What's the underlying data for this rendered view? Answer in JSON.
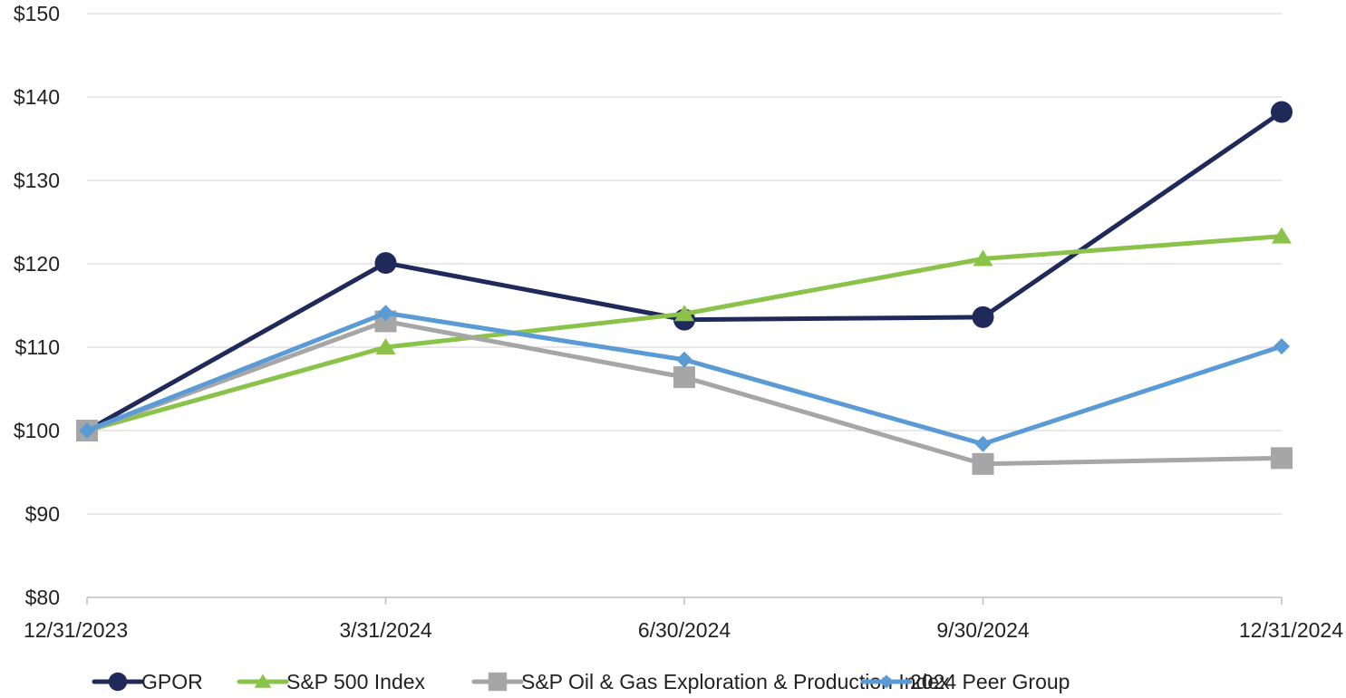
{
  "chart_data": {
    "type": "line",
    "categories": [
      "12/31/2023",
      "3/31/2024",
      "6/30/2024",
      "9/30/2024",
      "12/31/2024"
    ],
    "y_tick_values": [
      80,
      90,
      100,
      110,
      120,
      130,
      140,
      150
    ],
    "y_tick_labels": [
      "$80",
      "$90",
      "$100",
      "$110",
      "$120",
      "$130",
      "$140",
      "$150"
    ],
    "ylim": [
      80,
      150
    ],
    "grid": "horizontal",
    "legend_position": "bottom",
    "series": [
      {
        "name": "GPOR",
        "values": [
          100,
          120.1,
          113.3,
          113.6,
          138.2
        ],
        "color": "#1f2a5a",
        "marker": "circle"
      },
      {
        "name": "S&P 500 Index",
        "values": [
          100,
          110.0,
          114.0,
          120.6,
          123.3
        ],
        "color": "#8bc34a",
        "marker": "triangle"
      },
      {
        "name": "S&P Oil & Gas Exploration & Production Index",
        "values": [
          100,
          113.1,
          106.4,
          96.0,
          96.7
        ],
        "color": "#a6a6a6",
        "marker": "square"
      },
      {
        "name": "2024 Peer Group",
        "values": [
          100,
          114.1,
          108.5,
          98.4,
          110.1
        ],
        "color": "#5b9bd5",
        "marker": "diamond"
      }
    ]
  }
}
